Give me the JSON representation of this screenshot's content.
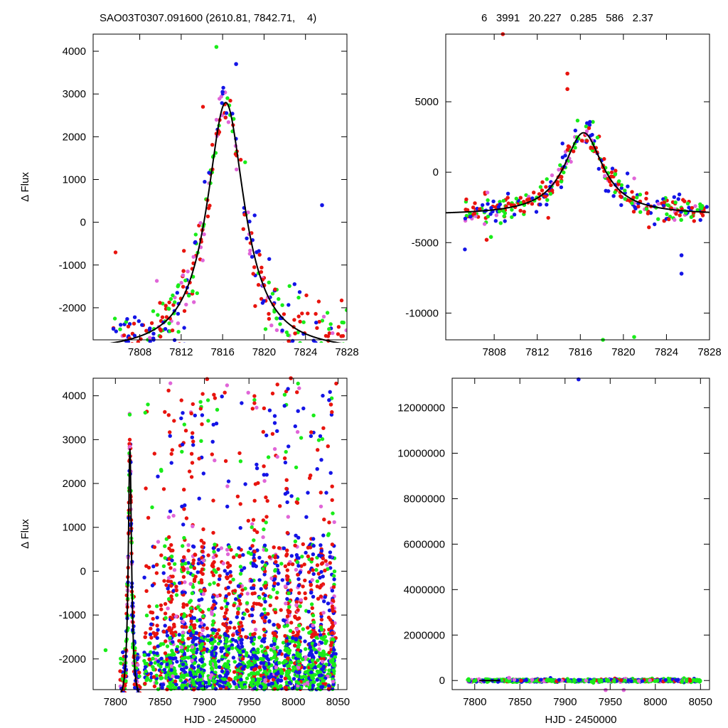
{
  "header": {
    "left": "SAO03T0307.091600 (2610.81, 7842.71,    4)",
    "right": "6   3991   20.227   0.285   586   2.37"
  },
  "colors": {
    "red": "#e8140e",
    "green": "#19ec19",
    "blue": "#1414e6",
    "pink": "#e065d8",
    "fit": "#000000"
  },
  "chart_data": [
    {
      "id": "top-left",
      "type": "scatter",
      "xlim": [
        7803.5,
        7828
      ],
      "ylim": [
        -2750,
        4400
      ],
      "xticks": [
        7808,
        7812,
        7816,
        7820,
        7824,
        7828
      ],
      "yticks": [
        -2000,
        -1000,
        0,
        1000,
        2000,
        3000,
        4000
      ],
      "xlabel": "",
      "ylabel": "Δ Flux",
      "fit_curve": {
        "type": "lorentzian",
        "peak_x": 7816.3,
        "amplitude": 5850,
        "baseline": -3050,
        "hwhm": 2.2
      },
      "sample_points": [
        {
          "x": 7815.4,
          "y": 4100,
          "color": "green"
        },
        {
          "x": 7816.0,
          "y": 3050,
          "color": "blue"
        },
        {
          "x": 7817.3,
          "y": 3700,
          "color": "blue"
        },
        {
          "x": 7825.6,
          "y": 400,
          "color": "blue"
        },
        {
          "x": 7823.0,
          "y": -2600,
          "color": "red"
        }
      ]
    },
    {
      "id": "top-right",
      "type": "scatter",
      "xlim": [
        7803.5,
        7828
      ],
      "ylim": [
        -11900,
        9800
      ],
      "xticks": [
        7808,
        7812,
        7816,
        7820,
        7824,
        7828
      ],
      "yticks": [
        -10000,
        -5000,
        0,
        5000
      ],
      "xlabel": "",
      "ylabel": "",
      "fit_curve": {
        "type": "lorentzian",
        "peak_x": 7816.3,
        "amplitude": 5850,
        "baseline": -3050,
        "hwhm": 2.2
      },
      "sample_points": [
        {
          "x": 7808.8,
          "y": 9800,
          "color": "red"
        },
        {
          "x": 7814.8,
          "y": 7000,
          "color": "red"
        },
        {
          "x": 7814.8,
          "y": 5900,
          "color": "red"
        },
        {
          "x": 7818.1,
          "y": -11900,
          "color": "green"
        },
        {
          "x": 7821.0,
          "y": -11700,
          "color": "green"
        },
        {
          "x": 7825.4,
          "y": -7200,
          "color": "blue"
        },
        {
          "x": 7825.4,
          "y": -5900,
          "color": "blue"
        },
        {
          "x": 7807.3,
          "y": -4800,
          "color": "red"
        },
        {
          "x": 7807.7,
          "y": -4600,
          "color": "green"
        }
      ]
    },
    {
      "id": "bottom-left",
      "type": "scatter",
      "xlim": [
        7775,
        8060
      ],
      "ylim": [
        -2700,
        4400
      ],
      "xticks": [
        7800,
        7850,
        7900,
        7950,
        8000,
        8050
      ],
      "yticks": [
        -2000,
        -1000,
        0,
        1000,
        2000,
        3000,
        4000
      ],
      "xlabel": "HJD - 2450000",
      "ylabel": "Δ Flux",
      "fit_curve": {
        "type": "lorentzian",
        "peak_x": 7816.3,
        "amplitude": 5850,
        "baseline": -3050,
        "hwhm": 2.2
      },
      "sample_points": [
        {
          "x": 7903,
          "y": 4380,
          "color": "red"
        },
        {
          "x": 7997,
          "y": 4400,
          "color": "red"
        },
        {
          "x": 8040,
          "y": 3900,
          "color": "blue"
        },
        {
          "x": 8042,
          "y": 3800,
          "color": "red"
        },
        {
          "x": 7789,
          "y": -1800,
          "color": "green"
        }
      ]
    },
    {
      "id": "bottom-right",
      "type": "scatter",
      "xlim": [
        7775,
        8060
      ],
      "ylim": [
        -400000,
        13300000
      ],
      "xticks": [
        7800,
        7850,
        7900,
        7950,
        8000,
        8050
      ],
      "yticks": [
        0,
        2000000,
        4000000,
        6000000,
        8000000,
        10000000,
        12000000
      ],
      "xlabel": "HJD - 2450000",
      "ylabel": "",
      "sample_points": [
        {
          "x": 7915,
          "y": 13250000,
          "color": "blue"
        },
        {
          "x": 7838,
          "y": 120000,
          "color": "pink"
        },
        {
          "x": 7945,
          "y": -420000,
          "color": "pink"
        },
        {
          "x": 7965,
          "y": -420000,
          "color": "pink"
        }
      ]
    }
  ]
}
